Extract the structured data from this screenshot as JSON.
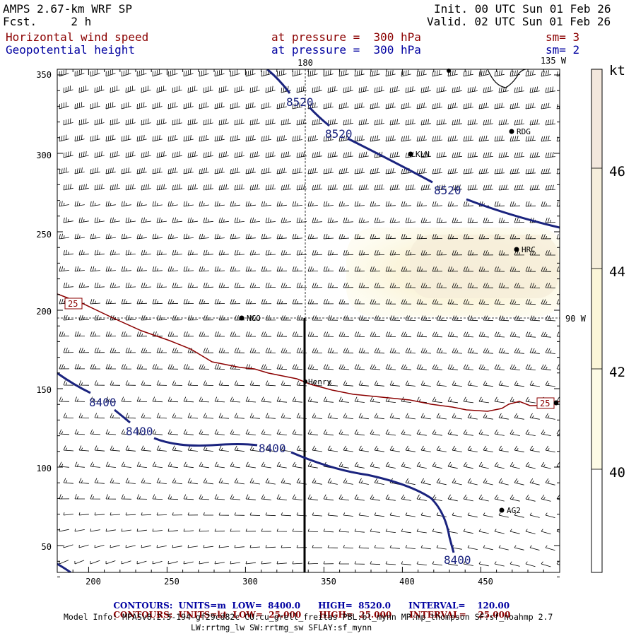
{
  "header": {
    "model": "AMPS 2.67-km WRF SP",
    "fcst": "Fcst.     2 h",
    "init": "Init. 00 UTC Sun 01 Feb 26",
    "valid": "Valid. 02 UTC Sun 01 Feb 26",
    "field1": {
      "name": "Horizontal wind speed",
      "level": "at pressure =  300 hPa",
      "sm": "sm= 3"
    },
    "field2": {
      "name": "Geopotential height",
      "level": "at pressure =  300 hPa",
      "sm": "sm= 2"
    }
  },
  "map": {
    "x_ticks": [
      "200",
      "250",
      "300",
      "350",
      "400",
      "450"
    ],
    "y_ticks": [
      "350",
      "300",
      "250",
      "200",
      "150",
      "100",
      "50"
    ],
    "lon_labels": {
      "top_180": "180",
      "top_135w": "135 W",
      "right_90w": "90 W"
    },
    "stations": [
      {
        "name": "RDG"
      },
      {
        "name": "KLN"
      },
      {
        "name": "HRC"
      },
      {
        "name": "NCO"
      },
      {
        "name": "Henry"
      },
      {
        "name": "AG2"
      }
    ],
    "height_contour_labels": [
      "8520",
      "8520",
      "8520",
      "8400",
      "8400",
      "8400",
      "8400"
    ],
    "wind_contour_labels": [
      "25",
      "25"
    ]
  },
  "colorbar": {
    "unit": "kt",
    "labels": [
      "46",
      "44",
      "42",
      "40"
    ],
    "colors": [
      "#ffffff",
      "#fdfbe6",
      "#fbf6d8",
      "#f6efdc",
      "#f3e8dd"
    ]
  },
  "footer": {
    "row1": {
      "title": "CONTOURS:",
      "units": "UNITS=m",
      "low": "LOW=  8400.0",
      "high": "HIGH=  8520.0",
      "interval": "INTERVAL=    120.00"
    },
    "row2": {
      "title": "CONTOURS:",
      "units": "UNITS=kt",
      "low": "LOW=  25.000",
      "high": "HIGH=  25.000",
      "interval": "INTERVAL=    25.000"
    },
    "model_info": "Model Info: MPASv8.2.3-194-gf29cd82c CU:cu_grell_freitas PBL:bl_mynn MP:mp_thompson SF:sf_noahmp 2.7",
    "model_info2": "LW:rrtmg_lw SW:rrtmg_sw SFLAY:sf_mynn"
  },
  "colors": {
    "height_contour": "#1a237e",
    "wind_contour": "#8b0000",
    "red_text": "#8b0000",
    "blue_text": "#0000a0"
  }
}
